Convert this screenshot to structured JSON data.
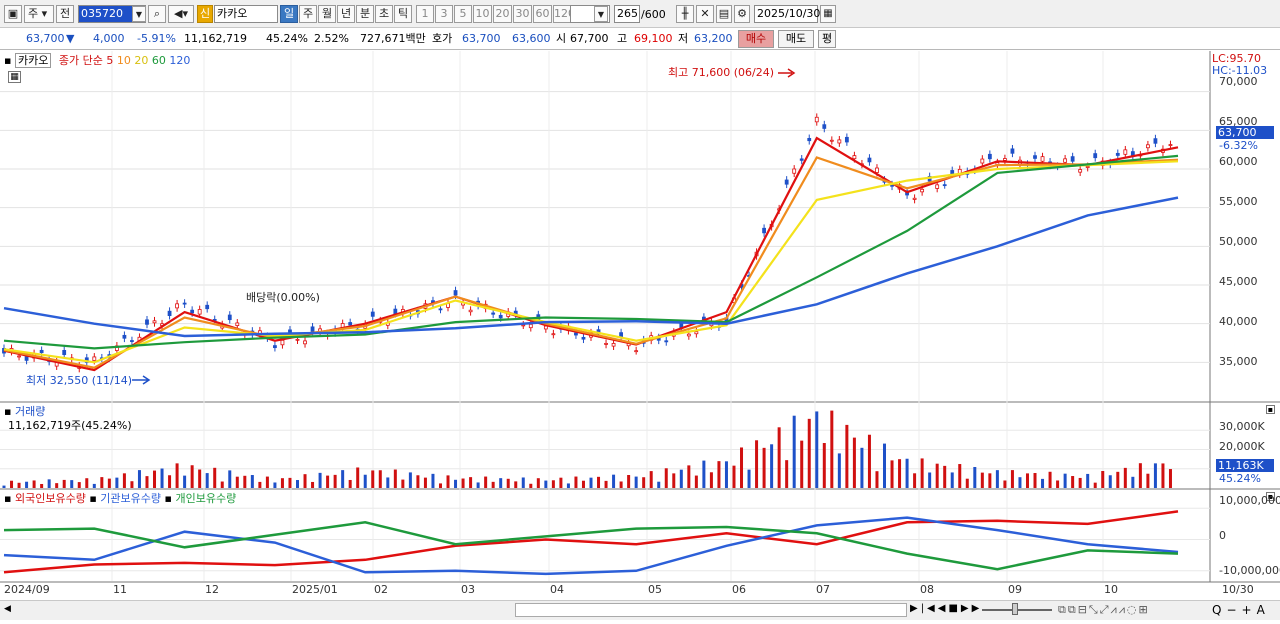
{
  "toolbar": {
    "period_type": "주",
    "prev_label": "전",
    "code": "035720",
    "stock_name": "카카오",
    "credit_badge": "신",
    "timeframes": [
      "일",
      "주",
      "월",
      "년",
      "분",
      "초",
      "틱"
    ],
    "active_timeframe": "일",
    "intervals": [
      "1",
      "3",
      "5",
      "10",
      "20",
      "30",
      "60",
      "120"
    ],
    "count": "265",
    "count_max": "/600",
    "date": "2025/10/30"
  },
  "quote": {
    "price": "63,700",
    "down_arrow": "▼",
    "change": "4,000",
    "change_pct": "-5.91%",
    "volume": "11,162,719",
    "vol_ratio": "45.24%",
    "turnover": "2.52%",
    "amount": "727,671백만",
    "bid_label": "호가",
    "ask": "63,700",
    "bid": "63,600",
    "open_label": "시",
    "open": "67,700",
    "high_label": "고",
    "high": "69,100",
    "low_label": "저",
    "low": "63,200",
    "buy_label": "매수",
    "sell_label": "매도",
    "eval_label": "평"
  },
  "price_pane": {
    "legend_name": "카카오",
    "ma_title": "종가 단순",
    "ma_periods": [
      "5",
      "10",
      "20",
      "60",
      "120"
    ],
    "ma_colors": [
      "#e01010",
      "#f08c1e",
      "#f4e21c",
      "#1e9a3c",
      "#2c5fd8"
    ],
    "lc": "LC:95.70",
    "hc": "HC:-11.03",
    "max_label": "최고 71,600 (06/24)",
    "min_label": "최저 32,550 (11/14)",
    "dividend_label": "배당락(0.00%)",
    "y_ticks": [
      "70,000",
      "65,000",
      "60,000",
      "55,000",
      "50,000",
      "45,000",
      "40,000",
      "35,000"
    ],
    "current_tag": "63,700",
    "current_pct": "-6.32%"
  },
  "volume_pane": {
    "title": "거래량",
    "value_text": "11,162,719주(45.24%)",
    "y_ticks": [
      "30,000K",
      "20,000K"
    ],
    "current_tag": "11,163K",
    "current_pct": "45.24%"
  },
  "holding_pane": {
    "items": [
      {
        "label": "외국인보유수량",
        "color": "#e01010"
      },
      {
        "label": "기관보유수량",
        "color": "#2c5fd8"
      },
      {
        "label": "개인보유수량",
        "color": "#1e9a3c"
      }
    ],
    "y_ticks": [
      "10,000,000",
      "0",
      "-10,000,000"
    ]
  },
  "x_axis": {
    "labels": [
      "2024/09",
      "11",
      "12",
      "2025/01",
      "02",
      "03",
      "04",
      "05",
      "06",
      "07",
      "08",
      "09",
      "10"
    ],
    "right_label": "10/30"
  },
  "chart_data": {
    "type": "line",
    "title": "카카오",
    "x": [
      "2024/09",
      "11",
      "12",
      "2025/01",
      "02",
      "03",
      "04",
      "05",
      "06",
      "07",
      "08",
      "09",
      "10",
      "10/30"
    ],
    "close_series": [
      {
        "name": "종가",
        "values": [
          36200,
          35000,
          42500,
          37600,
          40000,
          43000,
          39600,
          37200,
          40500,
          66000,
          56500,
          61500,
          60500,
          63700
        ]
      }
    ],
    "ma_series": [
      {
        "name": "5",
        "values": [
          36500,
          34000,
          41500,
          37800,
          40000,
          43500,
          39800,
          37300,
          41500,
          64000,
          57000,
          61000,
          60500,
          62800
        ]
      },
      {
        "name": "10",
        "values": [
          36600,
          34300,
          40800,
          38200,
          39700,
          43500,
          40000,
          37400,
          40700,
          61500,
          57500,
          60500,
          60600,
          61200
        ]
      },
      {
        "name": "20",
        "values": [
          36700,
          35000,
          39500,
          38400,
          39200,
          43000,
          40200,
          37800,
          39800,
          56000,
          58500,
          60000,
          60500,
          61000
        ]
      },
      {
        "name": "60",
        "values": [
          37800,
          36800,
          37600,
          38200,
          38600,
          40200,
          40800,
          40600,
          40200,
          46000,
          52000,
          59500,
          60600,
          61700
        ]
      },
      {
        "name": "120",
        "values": [
          42000,
          40000,
          38400,
          38700,
          38900,
          39400,
          40200,
          40300,
          40000,
          42500,
          46500,
          50000,
          54000,
          56300
        ]
      }
    ],
    "ylim": [
      30000,
      75000
    ],
    "volume_series": {
      "name": "거래량",
      "unit": "K",
      "ylim": [
        0,
        40000
      ],
      "values": [
        2500,
        3500,
        9000,
        3500,
        7500,
        4200,
        3500,
        5000,
        11000,
        30000,
        11000,
        6500,
        5000,
        11163
      ]
    },
    "holding_series": [
      {
        "name": "외국인보유수량",
        "values": [
          -10500000,
          -8000000,
          -7500000,
          -8200000,
          -6500000,
          -2000000,
          0,
          -1500000,
          2000000,
          -1500000,
          5500000,
          6000000,
          5000000,
          9000000
        ]
      },
      {
        "name": "기관보유수량",
        "values": [
          -5000000,
          -6500000,
          2500000,
          -1000000,
          -10500000,
          -10000000,
          -11000000,
          -10000000,
          -2000000,
          4500000,
          7000000,
          3000000,
          -1500000,
          -4000000
        ]
      },
      {
        "name": "개인보유수량",
        "values": [
          3000000,
          3500000,
          -2500000,
          1500000,
          5500000,
          -1500000,
          1000000,
          3500000,
          4000000,
          2000000,
          -4500000,
          -9500000,
          -3500000,
          -4500000
        ]
      }
    ],
    "holding_ylim": [
      -12000000,
      12000000
    ]
  },
  "bottom_bar": {
    "zoom_icons": [
      "Q",
      "−",
      "+",
      "A"
    ]
  }
}
